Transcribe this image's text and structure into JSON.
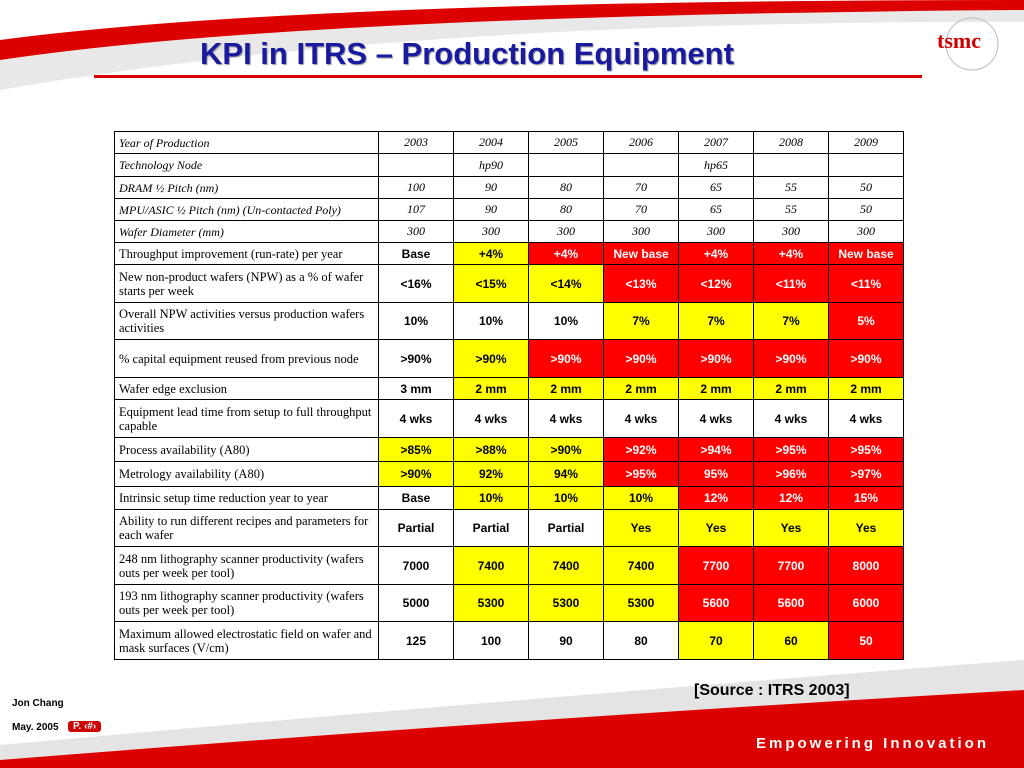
{
  "header": {
    "title": "KPI in ITRS – Production Equipment",
    "logo": "tsmc"
  },
  "table": {
    "rows": [
      {
        "label": "Year of Production",
        "cells": [
          2003,
          2004,
          2005,
          2006,
          2007,
          2008,
          2009
        ],
        "fills": [
          "#ffffff",
          "#ffffff",
          "#ffffff",
          "#ffffff",
          "#ffffff",
          "#ffffff",
          "#ffffff"
        ]
      },
      {
        "label": "Technology Node",
        "cells": [
          null,
          "hp90",
          null,
          null,
          "hp65",
          null,
          null
        ],
        "fills": [
          "#ffffff",
          "#ffffff",
          "#ffffff",
          "#ffffff",
          "#ffffff",
          "#ffffff",
          "#ffffff"
        ]
      },
      {
        "label": "DRAM ½ Pitch (nm)",
        "cells": [
          100,
          90,
          80,
          70,
          65,
          55,
          50
        ],
        "fills": [
          "#ffffff",
          "#ffffff",
          "#ffffff",
          "#ffffff",
          "#ffffff",
          "#ffffff",
          "#ffffff"
        ]
      },
      {
        "label": "MPU/ASIC ½ Pitch (nm) (Un-contacted Poly)",
        "cells": [
          107,
          90,
          80,
          70,
          65,
          55,
          50
        ],
        "fills": [
          "#ffffff",
          "#ffffff",
          "#ffffff",
          "#ffffff",
          "#ffffff",
          "#ffffff",
          "#ffffff"
        ]
      },
      {
        "label": "Wafer Diameter (mm)",
        "cells": [
          300,
          300,
          300,
          300,
          300,
          300,
          300
        ],
        "fills": [
          "#ffffff",
          "#ffffff",
          "#ffffff",
          "#ffffff",
          "#ffffff",
          "#ffffff",
          "#ffffff"
        ]
      },
      {
        "label": "Throughput improvement (run-rate) per year",
        "cells": [
          "Base",
          "+4%",
          "+4%",
          "New base",
          "+4%",
          "+4%",
          "New base"
        ],
        "fills": [
          "#ffffff",
          "#ffff00",
          "#ff0000",
          "#ff0000",
          "#ff0000",
          "#ff0000",
          "#ff0000"
        ]
      },
      {
        "label": "New non-product wafers (NPW) as a % of wafer starts per week",
        "cells": [
          "<16%",
          "<15%",
          "<14%",
          "<13%",
          "<12%",
          "<11%",
          "<11%"
        ],
        "fills": [
          "#ffffff",
          "#ffff00",
          "#ffff00",
          "#ff0000",
          "#ff0000",
          "#ff0000",
          "#ff0000"
        ]
      },
      {
        "label": "Overall NPW activities versus production wafers activities",
        "cells": [
          "10%",
          "10%",
          "10%",
          "7%",
          "7%",
          "7%",
          "5%"
        ],
        "fills": [
          "#ffffff",
          "#ffffff",
          "#ffffff",
          "#ffff00",
          "#ffff00",
          "#ffff00",
          "#ff0000"
        ]
      },
      {
        "label": "% capital equipment reused from previous node",
        "cells": [
          ">90%",
          ">90%",
          ">90%",
          ">90%",
          ">90%",
          ">90%",
          ">90%"
        ],
        "fills": [
          "#ffffff",
          "#ffff00",
          "#ff0000",
          "#ff0000",
          "#ff0000",
          "#ff0000",
          "#ff0000"
        ]
      },
      {
        "label": "Wafer edge exclusion",
        "cells": [
          "3 mm",
          "2 mm",
          "2 mm",
          "2 mm",
          "2 mm",
          "2 mm",
          "2 mm"
        ],
        "fills": [
          "#ffffff",
          "#ffff00",
          "#ffff00",
          "#ffff00",
          "#ffff00",
          "#ffff00",
          "#ffff00"
        ]
      },
      {
        "label": "Equipment lead time from setup to full throughput capable",
        "cells": [
          "4 wks",
          "4 wks",
          "4 wks",
          "4 wks",
          "4 wks",
          "4 wks",
          "4 wks"
        ],
        "fills": [
          "#ffffff",
          "#ffffff",
          "#ffffff",
          "#ffffff",
          "#ffffff",
          "#ffffff",
          "#ffffff"
        ]
      },
      {
        "label": "Process availability (A80)",
        "cells": [
          ">85%",
          ">88%",
          ">90%",
          ">92%",
          ">94%",
          ">95%",
          ">95%"
        ],
        "fills": [
          "#ffff00",
          "#ffff00",
          "#ffff00",
          "#ff0000",
          "#ff0000",
          "#ff0000",
          "#ff0000"
        ]
      },
      {
        "label": "Metrology availability (A80)",
        "cells": [
          ">90%",
          "92%",
          "94%",
          ">95%",
          "95%",
          ">96%",
          ">97%"
        ],
        "fills": [
          "#ffff00",
          "#ffff00",
          "#ffff00",
          "#ff0000",
          "#ff0000",
          "#ff0000",
          "#ff0000"
        ]
      },
      {
        "label": "Intrinsic setup time reduction year to year",
        "cells": [
          "Base",
          "10%",
          "10%",
          "10%",
          "12%",
          "12%",
          "15%"
        ],
        "fills": [
          "#ffffff",
          "#ffff00",
          "#ffff00",
          "#ffff00",
          "#ff0000",
          "#ff0000",
          "#ff0000"
        ]
      },
      {
        "label": "Ability to run different recipes and parameters for each wafer",
        "cells": [
          "Partial",
          "Partial",
          "Partial",
          "Yes",
          "Yes",
          "Yes",
          "Yes"
        ],
        "fills": [
          "#ffffff",
          "#ffffff",
          "#ffffff",
          "#ffff00",
          "#ffff00",
          "#ffff00",
          "#ffff00"
        ]
      },
      {
        "label": "248 nm lithography scanner productivity (wafers outs per week per tool)",
        "cells": [
          7000,
          7400,
          7400,
          7400,
          7700,
          7700,
          8000
        ],
        "fills": [
          "#ffffff",
          "#ffff00",
          "#ffff00",
          "#ffff00",
          "#ff0000",
          "#ff0000",
          "#ff0000"
        ]
      },
      {
        "label": "193 nm lithography scanner productivity (wafers outs per week per tool)",
        "cells": [
          5000,
          5300,
          5300,
          5300,
          5600,
          5600,
          6000
        ],
        "fills": [
          "#ffffff",
          "#ffff00",
          "#ffff00",
          "#ffff00",
          "#ff0000",
          "#ff0000",
          "#ff0000"
        ]
      },
      {
        "label": "Maximum allowed electrostatic field on wafer and mask surfaces (V/cm)",
        "cells": [
          125,
          100,
          90,
          80,
          70,
          60,
          50
        ],
        "fills": [
          "#ffffff",
          "#ffffff",
          "#ffffff",
          "#ffffff",
          "#ffff00",
          "#ffff00",
          "#ff0000"
        ]
      }
    ]
  },
  "footer": {
    "source": "[Source : ITRS 2003]",
    "author": "Jon Chang",
    "date": "May. 2005",
    "page": "P. ‹#›",
    "slogan": "Empowering Innovation"
  }
}
